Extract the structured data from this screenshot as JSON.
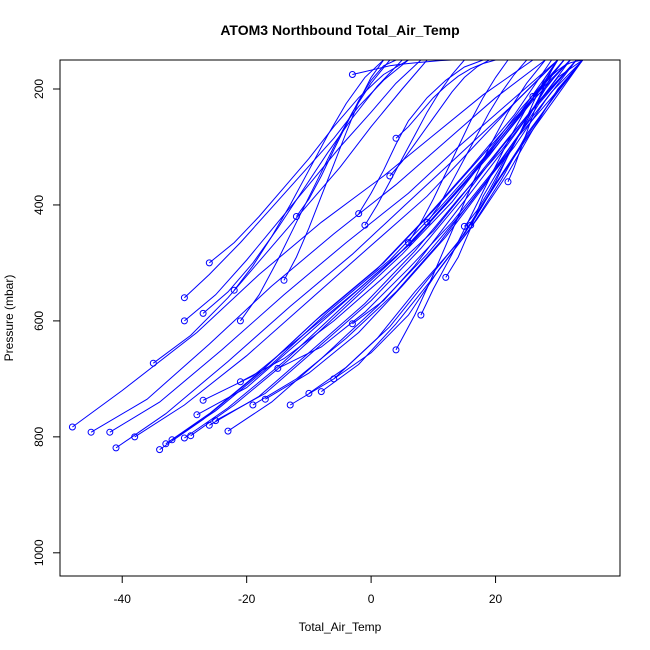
{
  "chart_data": {
    "type": "line",
    "title": "ATOM3 Northbound Total_Air_Temp",
    "xlabel": "Total_Air_Temp",
    "ylabel": "Pressure (mbar)",
    "xlim": [
      -50,
      40
    ],
    "ylim": [
      1040,
      150
    ],
    "y_reversed": true,
    "grid": false,
    "x_ticks": [
      -40,
      -20,
      0,
      20
    ],
    "y_ticks": [
      200,
      400,
      600,
      800,
      1000
    ],
    "color": "#0000ff",
    "markers": "open-circle",
    "profiles": [
      {
        "x": [
          -48,
          -40,
          -28,
          -18,
          -8,
          2,
          10,
          18,
          26
        ],
        "y": [
          783,
          720,
          620,
          520,
          430,
          350,
          280,
          210,
          150
        ]
      },
      {
        "x": [
          -45,
          -36,
          -26,
          -16,
          -6,
          4,
          12,
          20,
          28
        ],
        "y": [
          792,
          735,
          640,
          540,
          450,
          365,
          290,
          215,
          150
        ]
      },
      {
        "x": [
          -42,
          -34,
          -24,
          -14,
          -4,
          6,
          14,
          22,
          30
        ],
        "y": [
          792,
          740,
          650,
          555,
          465,
          380,
          300,
          225,
          150
        ]
      },
      {
        "x": [
          -41,
          -33,
          -23,
          -13,
          -3,
          6,
          14,
          22,
          30
        ],
        "y": [
          819,
          760,
          670,
          575,
          485,
          395,
          315,
          235,
          150
        ]
      },
      {
        "x": [
          -38,
          -30,
          -20,
          -10,
          0,
          9,
          16,
          23,
          30
        ],
        "y": [
          800,
          745,
          660,
          565,
          470,
          385,
          305,
          225,
          150
        ]
      },
      {
        "x": [
          -34,
          -27,
          -18,
          -9,
          1,
          9,
          16,
          23,
          29
        ],
        "y": [
          822,
          770,
          690,
          600,
          510,
          420,
          335,
          245,
          150
        ]
      },
      {
        "x": [
          -33,
          -26,
          -17,
          -8,
          2,
          10,
          17,
          24,
          30
        ],
        "y": [
          812,
          760,
          680,
          590,
          500,
          410,
          325,
          240,
          150
        ]
      },
      {
        "x": [
          -32,
          -25,
          -16,
          -7,
          3,
          11,
          18,
          24,
          31
        ],
        "y": [
          805,
          755,
          675,
          585,
          495,
          405,
          320,
          235,
          150
        ]
      },
      {
        "x": [
          -30,
          -23,
          -14,
          -5,
          4,
          12,
          19,
          25,
          31
        ],
        "y": [
          802,
          750,
          670,
          580,
          490,
          400,
          315,
          230,
          150
        ]
      },
      {
        "x": [
          -29,
          -22,
          -13,
          -4,
          5,
          13,
          19,
          25,
          31
        ],
        "y": [
          798,
          745,
          665,
          575,
          485,
          395,
          310,
          228,
          150
        ]
      },
      {
        "x": [
          -28,
          -20,
          -12,
          -3,
          6,
          13,
          20,
          26,
          32
        ],
        "y": [
          762,
          715,
          640,
          555,
          470,
          385,
          300,
          220,
          150
        ]
      },
      {
        "x": [
          -27,
          -19,
          -11,
          -2,
          7,
          14,
          20,
          26,
          32
        ],
        "y": [
          737,
          695,
          625,
          545,
          460,
          375,
          295,
          215,
          150
        ]
      },
      {
        "x": [
          -26,
          -18,
          -10,
          -1,
          7,
          14,
          21,
          27,
          32
        ],
        "y": [
          780,
          730,
          655,
          570,
          480,
          390,
          305,
          222,
          150
        ]
      },
      {
        "x": [
          -25,
          -17,
          -9,
          0,
          8,
          15,
          21,
          27,
          33
        ],
        "y": [
          772,
          725,
          650,
          565,
          475,
          385,
          300,
          220,
          150
        ]
      },
      {
        "x": [
          -23,
          -16,
          -8,
          1,
          9,
          16,
          22,
          27,
          33
        ],
        "y": [
          790,
          740,
          665,
          575,
          485,
          395,
          310,
          225,
          150
        ]
      },
      {
        "x": [
          -21,
          -14,
          -6,
          2,
          10,
          16,
          22,
          28,
          33
        ],
        "y": [
          705,
          665,
          600,
          525,
          445,
          365,
          285,
          210,
          150
        ]
      },
      {
        "x": [
          -19,
          -12,
          -4,
          4,
          11,
          17,
          23,
          28,
          33
        ],
        "y": [
          745,
          700,
          630,
          550,
          465,
          380,
          300,
          220,
          150
        ]
      },
      {
        "x": [
          -17,
          -10,
          -2,
          5,
          12,
          18,
          23,
          29,
          34
        ],
        "y": [
          735,
          690,
          620,
          540,
          455,
          370,
          290,
          215,
          150
        ]
      },
      {
        "x": [
          -15,
          -8,
          -1,
          6,
          13,
          19,
          24,
          29,
          34
        ],
        "y": [
          682,
          645,
          585,
          510,
          430,
          350,
          275,
          205,
          150
        ]
      },
      {
        "x": [
          -13,
          -6,
          1,
          7,
          14,
          19,
          24,
          29,
          34
        ],
        "y": [
          745,
          700,
          630,
          550,
          465,
          380,
          298,
          218,
          150
        ]
      },
      {
        "x": [
          -10,
          -4,
          3,
          9,
          15,
          20,
          25,
          30,
          34
        ],
        "y": [
          725,
          680,
          610,
          530,
          450,
          365,
          285,
          210,
          150
        ]
      },
      {
        "x": [
          -8,
          -2,
          4,
          10,
          16,
          21,
          25,
          30,
          34
        ],
        "y": [
          722,
          675,
          605,
          525,
          440,
          355,
          278,
          205,
          150
        ]
      },
      {
        "x": [
          -6,
          0,
          6,
          11,
          17,
          22,
          26,
          30,
          34
        ],
        "y": [
          700,
          655,
          590,
          510,
          425,
          345,
          270,
          200,
          150
        ]
      },
      {
        "x": [
          -3,
          2,
          7,
          12,
          17,
          22,
          26,
          30,
          34
        ],
        "y": [
          605,
          565,
          505,
          435,
          365,
          295,
          235,
          180,
          150
        ]
      },
      {
        "x": [
          -30,
          -26,
          -21,
          -16,
          -11,
          -6,
          -2,
          2,
          6
        ],
        "y": [
          560,
          520,
          465,
          405,
          345,
          285,
          230,
          185,
          150
        ]
      },
      {
        "x": [
          -30,
          -25,
          -20,
          -15,
          -10,
          -5,
          0,
          4,
          8
        ],
        "y": [
          600,
          555,
          495,
          430,
          365,
          300,
          240,
          190,
          150
        ]
      },
      {
        "x": [
          -35,
          -29,
          -23,
          -17,
          -11,
          -5,
          0,
          5,
          9
        ],
        "y": [
          673,
          625,
          560,
          485,
          410,
          335,
          265,
          200,
          150
        ]
      },
      {
        "x": [
          -27,
          -23,
          -19,
          -15,
          -11,
          -7,
          -3,
          1,
          5
        ],
        "y": [
          587,
          550,
          500,
          440,
          375,
          310,
          250,
          195,
          150
        ]
      },
      {
        "x": [
          -26,
          -22,
          -18,
          -14,
          -10,
          -6,
          -2,
          2,
          6
        ],
        "y": [
          500,
          465,
          420,
          370,
          320,
          265,
          215,
          175,
          150
        ]
      },
      {
        "x": [
          -22,
          -19,
          -16,
          -13,
          -10,
          -7,
          -4,
          -1,
          2
        ],
        "y": [
          547,
          505,
          455,
          400,
          340,
          280,
          225,
          180,
          150
        ]
      },
      {
        "x": [
          -21,
          -18,
          -15,
          -12,
          -9,
          -6,
          -3,
          0,
          3
        ],
        "y": [
          600,
          555,
          495,
          430,
          365,
          300,
          240,
          190,
          150
        ]
      },
      {
        "x": [
          -14,
          -12,
          -10,
          -8,
          -6,
          -4,
          -2,
          0,
          2
        ],
        "y": [
          530,
          490,
          440,
          385,
          330,
          275,
          222,
          180,
          150
        ]
      },
      {
        "x": [
          -12,
          -10,
          -8,
          -6,
          -4,
          -2,
          0,
          2,
          4
        ],
        "y": [
          420,
          390,
          350,
          305,
          262,
          220,
          185,
          160,
          150
        ]
      },
      {
        "x": [
          -3,
          -1,
          1,
          3,
          5,
          7,
          9,
          11,
          13
        ],
        "y": [
          175,
          170,
          165,
          160,
          157,
          155,
          153,
          151,
          150
        ]
      },
      {
        "x": [
          -2,
          0,
          2,
          4,
          6,
          9,
          12,
          15,
          18
        ],
        "y": [
          415,
          380,
          340,
          295,
          255,
          215,
          185,
          162,
          150
        ]
      },
      {
        "x": [
          4,
          6,
          8,
          10,
          12,
          14,
          16,
          18,
          20
        ],
        "y": [
          285,
          265,
          240,
          215,
          195,
          178,
          165,
          156,
          150
        ]
      },
      {
        "x": [
          4,
          7,
          10,
          13,
          16,
          19,
          22,
          25,
          28
        ],
        "y": [
          650,
          590,
          520,
          445,
          370,
          300,
          240,
          190,
          150
        ]
      },
      {
        "x": [
          8,
          10,
          13,
          16,
          19,
          22,
          25,
          28,
          30
        ],
        "y": [
          590,
          545,
          485,
          420,
          355,
          290,
          232,
          185,
          150
        ]
      },
      {
        "x": [
          12,
          14,
          16,
          18,
          21,
          24,
          26,
          28,
          30
        ],
        "y": [
          525,
          490,
          440,
          385,
          330,
          275,
          225,
          180,
          150
        ]
      },
      {
        "x": [
          15,
          17,
          19,
          21,
          23,
          25,
          27,
          29,
          31
        ],
        "y": [
          437,
          410,
          375,
          335,
          295,
          255,
          215,
          178,
          150
        ]
      },
      {
        "x": [
          22,
          23,
          24,
          25,
          26,
          27,
          28,
          29,
          30
        ],
        "y": [
          360,
          335,
          305,
          275,
          245,
          215,
          190,
          168,
          150
        ]
      },
      {
        "x": [
          26,
          27,
          28,
          29,
          30,
          31,
          32,
          33,
          34
        ],
        "y": [
          213,
          200,
          188,
          177,
          168,
          160,
          155,
          152,
          150
        ]
      },
      {
        "x": [
          16,
          18,
          20,
          22,
          24,
          26,
          28,
          30,
          32
        ],
        "y": [
          435,
          400,
          360,
          315,
          275,
          235,
          200,
          172,
          150
        ]
      },
      {
        "x": [
          9,
          11,
          13,
          15,
          17,
          19,
          21,
          23,
          25
        ],
        "y": [
          430,
          400,
          360,
          320,
          280,
          240,
          205,
          175,
          150
        ]
      },
      {
        "x": [
          3,
          5,
          7,
          9,
          11,
          13,
          15,
          17,
          19
        ],
        "y": [
          350,
          325,
          295,
          265,
          235,
          205,
          180,
          162,
          150
        ]
      },
      {
        "x": [
          -1,
          1,
          3,
          5,
          7,
          9,
          11,
          13,
          15
        ],
        "y": [
          435,
          400,
          360,
          320,
          280,
          240,
          205,
          175,
          150
        ]
      },
      {
        "x": [
          6,
          8,
          10,
          12,
          14,
          16,
          18,
          20,
          22
        ],
        "y": [
          465,
          430,
          390,
          345,
          300,
          255,
          215,
          180,
          150
        ]
      }
    ]
  }
}
